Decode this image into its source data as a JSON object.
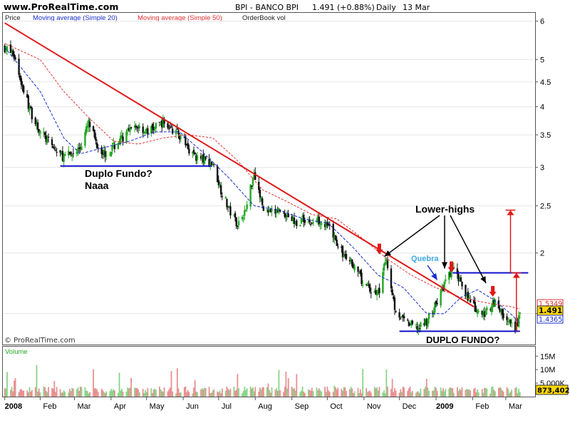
{
  "header": {
    "site": "www.ProRealTime.com",
    "symbol": "BPI - BANCO BPI",
    "quote": "1.491 (+0.88%)",
    "period": "Daily",
    "date": "13 Mar"
  },
  "legend": {
    "price": "Price",
    "ma20": "Moving average (Simple 20)",
    "ma50": "Moving average (Simple 50)",
    "orderbook": "OrderBook vol",
    "volume": "Volume"
  },
  "copyright": "© ProRealTime.com",
  "colors": {
    "ma20": "#1a2ecc",
    "ma50": "#e03030",
    "trend": "#e01818",
    "support": "#1111cc",
    "up_candle": "#22a822",
    "down_candle": "#111111",
    "vol_up": "#88d488",
    "vol_down": "#e89090",
    "badge_price": "#ffd700",
    "quebra": "#40a8e0"
  },
  "annotations": {
    "duplo_fundo_1": "Duplo Fundo?",
    "naaa": "Naaa",
    "lower_highs": "Lower-highs",
    "quebra": "Quebra",
    "duplo_fundo_2": "DUPLO FUNDO?"
  },
  "badges": {
    "ma50": "1.5349",
    "last": "1.491",
    "ma20": "1.4365",
    "volume": "873,402"
  },
  "chart_data": {
    "type": "candlestick",
    "title": "BPI - BANCO BPI",
    "scale": "log",
    "ylim": [
      1.3,
      6.2
    ],
    "y_ticks": [
      6,
      5,
      4.5,
      4,
      3.5,
      3,
      2.5,
      2,
      1.5
    ],
    "y_tick_labels": [
      "6",
      "5",
      "4.5",
      "4",
      "3.5",
      "3",
      "2.5",
      "2",
      ""
    ],
    "x_labels": [
      "2008",
      "Feb",
      "Mar",
      "Apr",
      "May",
      "Jun",
      "Jul",
      "Aug",
      "Sep",
      "Oct",
      "Nov",
      "Dec",
      "2009",
      "Feb",
      "Mar"
    ],
    "close_series": [
      [
        "2008-01-02",
        5.3
      ],
      [
        "2008-01-10",
        5.1
      ],
      [
        "2008-01-17",
        4.4
      ],
      [
        "2008-01-24",
        3.9
      ],
      [
        "2008-01-31",
        3.6
      ],
      [
        "2008-02-07",
        3.4
      ],
      [
        "2008-02-14",
        3.25
      ],
      [
        "2008-02-21",
        3.15
      ],
      [
        "2008-02-28",
        3.2
      ],
      [
        "2008-03-06",
        3.3
      ],
      [
        "2008-03-13",
        3.7
      ],
      [
        "2008-03-20",
        3.35
      ],
      [
        "2008-03-27",
        3.2
      ],
      [
        "2008-04-03",
        3.3
      ],
      [
        "2008-04-10",
        3.45
      ],
      [
        "2008-04-17",
        3.55
      ],
      [
        "2008-04-24",
        3.65
      ],
      [
        "2008-05-01",
        3.55
      ],
      [
        "2008-05-08",
        3.62
      ],
      [
        "2008-05-15",
        3.72
      ],
      [
        "2008-05-22",
        3.6
      ],
      [
        "2008-05-29",
        3.5
      ],
      [
        "2008-06-05",
        3.3
      ],
      [
        "2008-06-12",
        3.15
      ],
      [
        "2008-06-19",
        3.1
      ],
      [
        "2008-06-26",
        3.05
      ],
      [
        "2008-07-03",
        2.7
      ],
      [
        "2008-07-10",
        2.45
      ],
      [
        "2008-07-17",
        2.3
      ],
      [
        "2008-07-24",
        2.45
      ],
      [
        "2008-07-31",
        2.95
      ],
      [
        "2008-08-07",
        2.5
      ],
      [
        "2008-08-14",
        2.4
      ],
      [
        "2008-08-21",
        2.45
      ],
      [
        "2008-08-28",
        2.4
      ],
      [
        "2008-09-04",
        2.3
      ],
      [
        "2008-09-11",
        2.35
      ],
      [
        "2008-09-18",
        2.3
      ],
      [
        "2008-09-25",
        2.35
      ],
      [
        "2008-10-02",
        2.25
      ],
      [
        "2008-10-09",
        2.1
      ],
      [
        "2008-10-16",
        1.95
      ],
      [
        "2008-10-23",
        1.9
      ],
      [
        "2008-10-30",
        1.75
      ],
      [
        "2008-11-06",
        1.68
      ],
      [
        "2008-11-13",
        1.65
      ],
      [
        "2008-11-20",
        1.95
      ],
      [
        "2008-11-27",
        1.55
      ],
      [
        "2008-12-04",
        1.45
      ],
      [
        "2008-12-11",
        1.42
      ],
      [
        "2008-12-18",
        1.4
      ],
      [
        "2008-12-24",
        1.45
      ],
      [
        "2008-12-31",
        1.55
      ],
      [
        "2009-01-08",
        1.72
      ],
      [
        "2009-01-15",
        1.85
      ],
      [
        "2009-01-22",
        1.75
      ],
      [
        "2009-01-29",
        1.6
      ],
      [
        "2009-02-05",
        1.5
      ],
      [
        "2009-02-12",
        1.5
      ],
      [
        "2009-02-19",
        1.6
      ],
      [
        "2009-02-26",
        1.5
      ],
      [
        "2009-03-05",
        1.42
      ],
      [
        "2009-03-09",
        1.38
      ],
      [
        "2009-03-13",
        1.491
      ]
    ],
    "ma20_series": [
      [
        "2008-01-02",
        5.3
      ],
      [
        "2008-02-01",
        4.3
      ],
      [
        "2008-02-21",
        3.45
      ],
      [
        "2008-03-06",
        3.2
      ],
      [
        "2008-03-27",
        3.3
      ],
      [
        "2008-04-17",
        3.4
      ],
      [
        "2008-05-08",
        3.55
      ],
      [
        "2008-05-29",
        3.55
      ],
      [
        "2008-06-19",
        3.2
      ],
      [
        "2008-07-10",
        2.85
      ],
      [
        "2008-07-31",
        2.5
      ],
      [
        "2008-08-21",
        2.45
      ],
      [
        "2008-09-11",
        2.35
      ],
      [
        "2008-10-02",
        2.3
      ],
      [
        "2008-10-23",
        2.05
      ],
      [
        "2008-11-13",
        1.8
      ],
      [
        "2008-12-04",
        1.7
      ],
      [
        "2008-12-24",
        1.5
      ],
      [
        "2009-01-08",
        1.5
      ],
      [
        "2009-01-22",
        1.62
      ],
      [
        "2009-02-05",
        1.68
      ],
      [
        "2009-02-19",
        1.6
      ],
      [
        "2009-03-05",
        1.5
      ],
      [
        "2009-03-13",
        1.4365
      ]
    ],
    "ma50_series": [
      [
        "2008-01-02",
        5.4
      ],
      [
        "2008-02-01",
        5.0
      ],
      [
        "2008-02-21",
        4.3
      ],
      [
        "2008-03-13",
        3.8
      ],
      [
        "2008-04-03",
        3.4
      ],
      [
        "2008-04-24",
        3.35
      ],
      [
        "2008-05-15",
        3.45
      ],
      [
        "2008-06-05",
        3.5
      ],
      [
        "2008-06-26",
        3.45
      ],
      [
        "2008-07-17",
        3.1
      ],
      [
        "2008-08-07",
        2.7
      ],
      [
        "2008-08-28",
        2.55
      ],
      [
        "2008-09-18",
        2.4
      ],
      [
        "2008-10-09",
        2.35
      ],
      [
        "2008-10-30",
        2.15
      ],
      [
        "2008-11-20",
        1.95
      ],
      [
        "2008-12-11",
        1.8
      ],
      [
        "2008-12-31",
        1.7
      ],
      [
        "2009-01-22",
        1.62
      ],
      [
        "2009-02-12",
        1.58
      ],
      [
        "2009-03-05",
        1.55
      ],
      [
        "2009-03-13",
        1.5349
      ]
    ],
    "trendline": [
      [
        "2008-01-02",
        5.95
      ],
      [
        "2009-02-02",
        1.55
      ]
    ],
    "support_1": {
      "from": "2008-02-18",
      "to": "2008-06-25",
      "y": 3.02
    },
    "support_2": {
      "from": "2008-12-01",
      "to": "2009-03-13",
      "y": 1.38
    },
    "resistance": {
      "from": "2009-01-15",
      "to": "2009-03-20",
      "y": 1.82
    },
    "lower_high_markers": [
      [
        "2008-11-14",
        1.98
      ],
      [
        "2009-01-14",
        1.82
      ],
      [
        "2009-02-18",
        1.62
      ]
    ],
    "target_arrows": [
      {
        "x": "2009-03-05",
        "from": 1.82,
        "to": 2.45
      },
      {
        "x": "2009-03-10",
        "from": 1.38,
        "to": 1.82
      }
    ],
    "volume": {
      "yticks": [
        15000000,
        10000000,
        5000000
      ],
      "ytick_labels": [
        "15M",
        "10M",
        "5,000K"
      ],
      "ylim": [
        0,
        18000000
      ]
    }
  }
}
